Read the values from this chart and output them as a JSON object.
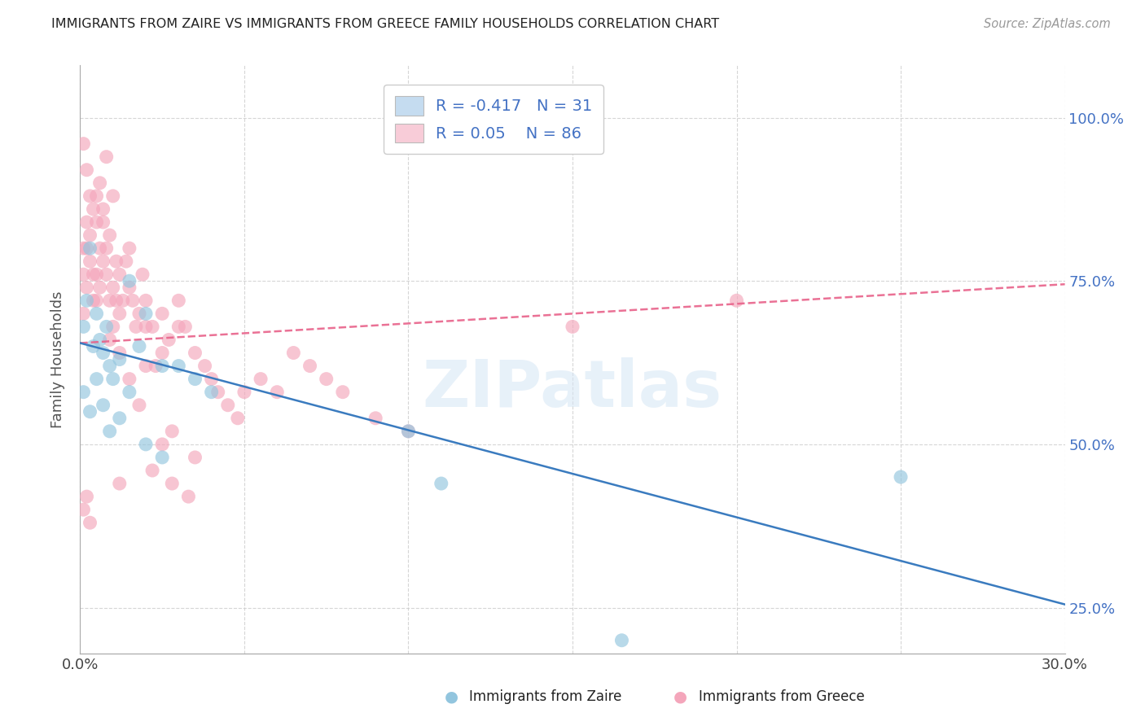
{
  "title": "IMMIGRANTS FROM ZAIRE VS IMMIGRANTS FROM GREECE FAMILY HOUSEHOLDS CORRELATION CHART",
  "source": "Source: ZipAtlas.com",
  "xlabel_blue": "Immigrants from Zaire",
  "xlabel_pink": "Immigrants from Greece",
  "ylabel": "Family Households",
  "watermark": "ZIPatlas",
  "xlim": [
    0.0,
    0.3
  ],
  "ylim": [
    0.18,
    1.08
  ],
  "xticks": [
    0.0,
    0.05,
    0.1,
    0.15,
    0.2,
    0.25,
    0.3
  ],
  "xtick_labels": [
    "0.0%",
    "",
    "",
    "",
    "",
    "",
    "30.0%"
  ],
  "ytick_labels": [
    "25.0%",
    "50.0%",
    "75.0%",
    "100.0%"
  ],
  "yticks": [
    0.25,
    0.5,
    0.75,
    1.0
  ],
  "R_blue": -0.417,
  "N_blue": 31,
  "R_pink": 0.05,
  "N_pink": 86,
  "blue_color": "#92c5de",
  "pink_color": "#f4a6bb",
  "blue_line_color": "#3a7bbf",
  "pink_line_color": "#e8628a",
  "legend_blue_fill": "#c5dcf0",
  "legend_pink_fill": "#f8ccd8",
  "blue_line_x": [
    0.0,
    0.3
  ],
  "blue_line_y": [
    0.655,
    0.255
  ],
  "pink_line_x": [
    0.0,
    0.3
  ],
  "pink_line_y": [
    0.655,
    0.745
  ],
  "blue_scatter_x": [
    0.001,
    0.002,
    0.003,
    0.004,
    0.005,
    0.006,
    0.007,
    0.008,
    0.009,
    0.01,
    0.012,
    0.015,
    0.018,
    0.02,
    0.025,
    0.03,
    0.035,
    0.04,
    0.1,
    0.165,
    0.001,
    0.003,
    0.005,
    0.007,
    0.009,
    0.012,
    0.015,
    0.02,
    0.025,
    0.25,
    0.11
  ],
  "blue_scatter_y": [
    0.68,
    0.72,
    0.8,
    0.65,
    0.7,
    0.66,
    0.64,
    0.68,
    0.62,
    0.6,
    0.63,
    0.75,
    0.65,
    0.7,
    0.62,
    0.62,
    0.6,
    0.58,
    0.52,
    0.2,
    0.58,
    0.55,
    0.6,
    0.56,
    0.52,
    0.54,
    0.58,
    0.5,
    0.48,
    0.45,
    0.44
  ],
  "pink_scatter_x": [
    0.001,
    0.001,
    0.001,
    0.002,
    0.002,
    0.002,
    0.003,
    0.003,
    0.004,
    0.004,
    0.005,
    0.005,
    0.005,
    0.006,
    0.006,
    0.007,
    0.007,
    0.008,
    0.008,
    0.009,
    0.009,
    0.01,
    0.01,
    0.011,
    0.011,
    0.012,
    0.012,
    0.013,
    0.014,
    0.015,
    0.015,
    0.016,
    0.017,
    0.018,
    0.019,
    0.02,
    0.02,
    0.022,
    0.023,
    0.025,
    0.025,
    0.027,
    0.03,
    0.03,
    0.032,
    0.035,
    0.038,
    0.04,
    0.042,
    0.045,
    0.048,
    0.05,
    0.055,
    0.06,
    0.065,
    0.07,
    0.075,
    0.08,
    0.09,
    0.1,
    0.001,
    0.002,
    0.003,
    0.004,
    0.005,
    0.006,
    0.007,
    0.008,
    0.009,
    0.01,
    0.012,
    0.015,
    0.018,
    0.02,
    0.001,
    0.002,
    0.003,
    0.15,
    0.2,
    0.012,
    0.022,
    0.028,
    0.033,
    0.025,
    0.028,
    0.035
  ],
  "pink_scatter_y": [
    0.7,
    0.76,
    0.8,
    0.74,
    0.8,
    0.84,
    0.78,
    0.82,
    0.76,
    0.72,
    0.72,
    0.76,
    0.88,
    0.8,
    0.74,
    0.78,
    0.84,
    0.8,
    0.76,
    0.72,
    0.66,
    0.68,
    0.74,
    0.72,
    0.78,
    0.7,
    0.76,
    0.72,
    0.78,
    0.8,
    0.74,
    0.72,
    0.68,
    0.7,
    0.76,
    0.68,
    0.72,
    0.68,
    0.62,
    0.64,
    0.7,
    0.66,
    0.68,
    0.72,
    0.68,
    0.64,
    0.62,
    0.6,
    0.58,
    0.56,
    0.54,
    0.58,
    0.6,
    0.58,
    0.64,
    0.62,
    0.6,
    0.58,
    0.54,
    0.52,
    0.96,
    0.92,
    0.88,
    0.86,
    0.84,
    0.9,
    0.86,
    0.94,
    0.82,
    0.88,
    0.64,
    0.6,
    0.56,
    0.62,
    0.4,
    0.42,
    0.38,
    0.68,
    0.72,
    0.44,
    0.46,
    0.44,
    0.42,
    0.5,
    0.52,
    0.48
  ]
}
